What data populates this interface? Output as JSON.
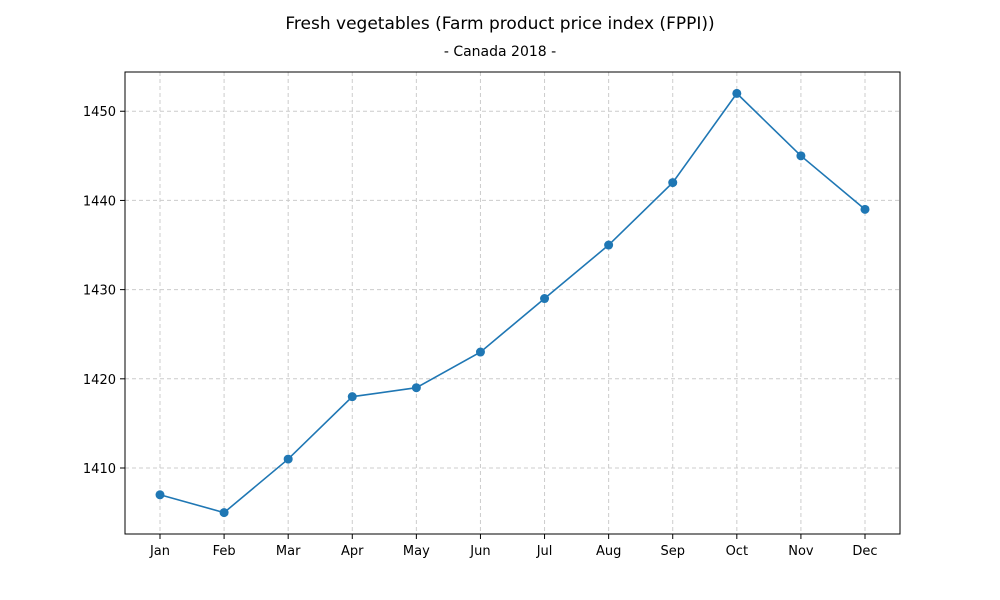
{
  "chart_data": {
    "type": "line",
    "title": "Fresh vegetables (Farm product price index (FPPI))",
    "subtitle": "- Canada 2018 -",
    "xlabel": "",
    "ylabel": "",
    "categories": [
      "Jan",
      "Feb",
      "Mar",
      "Apr",
      "May",
      "Jun",
      "Jul",
      "Aug",
      "Sep",
      "Oct",
      "Nov",
      "Dec"
    ],
    "series": [
      {
        "values": [
          1407,
          1405,
          1411,
          1418,
          1419,
          1423,
          1429,
          1435,
          1442,
          1452,
          1445,
          1439
        ],
        "color": "#1f77b4",
        "marker": "circle"
      }
    ],
    "yticks": [
      1410,
      1420,
      1430,
      1440,
      1450
    ],
    "ylim": [
      1402.6,
      1454.4
    ],
    "grid": true,
    "legend": "none"
  }
}
